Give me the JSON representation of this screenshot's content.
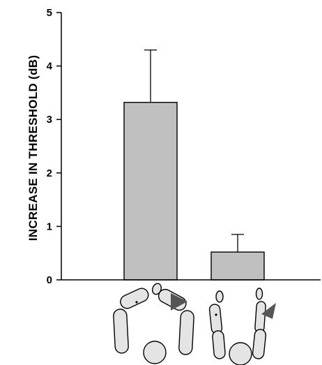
{
  "chart_data": {
    "type": "bar",
    "ylabel": "INCREASE IN THRESHOLD (dB)",
    "xlabel": "",
    "ylim": [
      0,
      5
    ],
    "yticks": [
      0,
      1,
      2,
      3,
      4,
      5
    ],
    "categories": [
      "arms-joined-posture",
      "arms-raised-posture"
    ],
    "values": [
      3.32,
      0.52
    ],
    "error_upper": [
      0.98,
      0.33
    ],
    "colors": {
      "bar_fill": "#c0c0c0",
      "bar_stroke": "#000000",
      "arrow": "#555555"
    },
    "grid": false,
    "legend": "none"
  }
}
